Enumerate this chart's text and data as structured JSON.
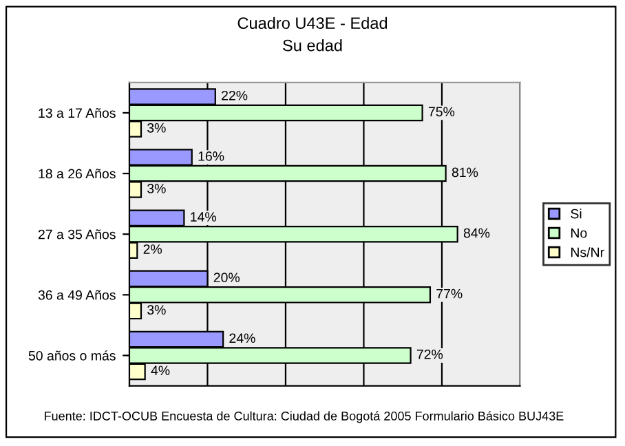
{
  "chart_data": {
    "type": "bar",
    "orientation": "horizontal",
    "title": "Cuadro U43E - Edad",
    "subtitle": "Su edad",
    "categories": [
      "13 a 17 Años",
      "18 a 26 Años",
      "27 a 35 Años",
      "36 a 49 Años",
      "50 años o más"
    ],
    "series": [
      {
        "name": "Si",
        "color": "#9999ff",
        "values": [
          22,
          16,
          14,
          20,
          24
        ],
        "value_labels": [
          "22%",
          "16%",
          "14%",
          "20%",
          "24%"
        ]
      },
      {
        "name": "No",
        "color": "#ccffcc",
        "values": [
          75,
          81,
          84,
          77,
          72
        ],
        "value_labels": [
          "75%",
          "81%",
          "84%",
          "77%",
          "72%"
        ]
      },
      {
        "name": "Ns/Nr",
        "color": "#ffffcc",
        "values": [
          3,
          3,
          2,
          3,
          4
        ],
        "value_labels": [
          "3%",
          "3%",
          "2%",
          "3%",
          "4%"
        ]
      }
    ],
    "xlim": [
      0,
      100
    ],
    "xticks": [
      {
        "value": 0,
        "label": null
      },
      {
        "value": 20,
        "label": null
      },
      {
        "value": 40,
        "label": null
      },
      {
        "value": 60,
        "label": null
      },
      {
        "value": 80,
        "label": null
      },
      {
        "value": 100,
        "label": null
      }
    ],
    "tick_labels": "y",
    "grid": "x",
    "legend": "right",
    "annotations": [
      "Fuente: IDCT-OCUB Encuesta de Cultura: Ciudad de Bogotá 2005 Formulario Básico BUJ43E"
    ]
  }
}
